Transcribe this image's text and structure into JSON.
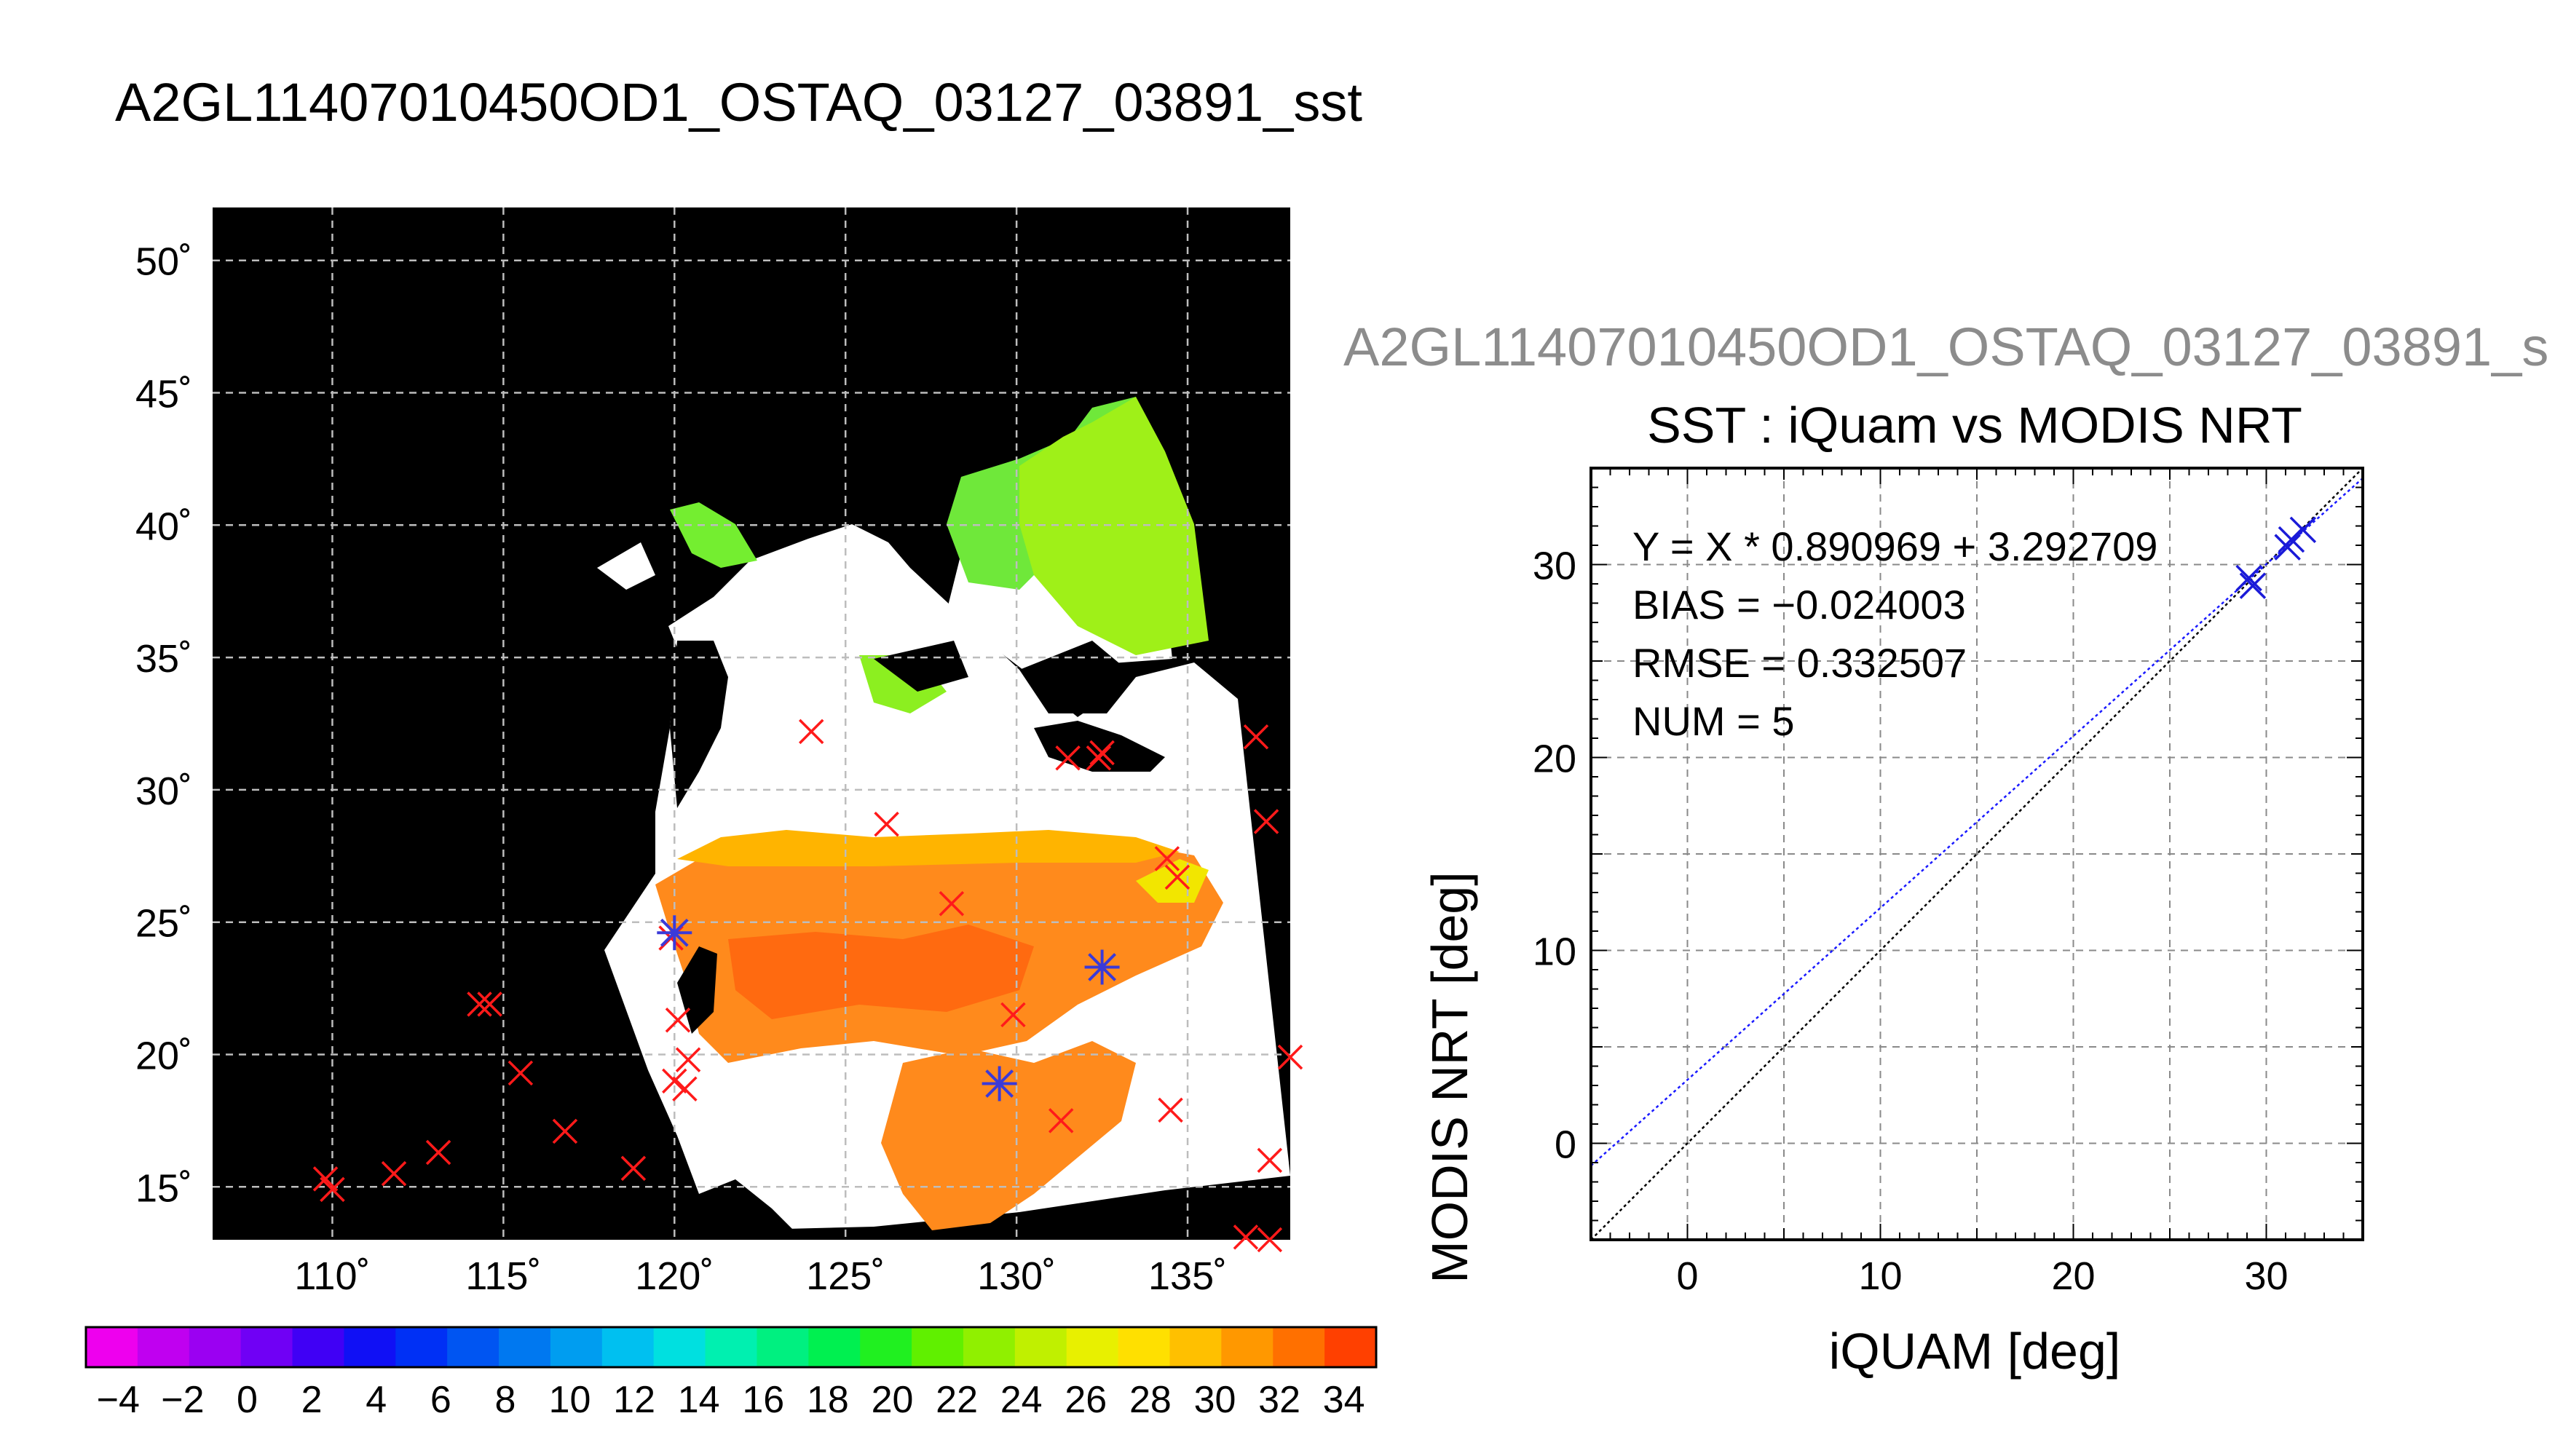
{
  "figure": {
    "main_title": "A2GL11407010450OD1_OSTAQ_03127_03891_sst",
    "right_title": "A2GL11407010450OD1_OSTAQ_03127_03891_s"
  },
  "chart_data": [
    {
      "type": "map",
      "xlim": [
        106.5,
        138
      ],
      "ylim": [
        13,
        52
      ],
      "lon_ticks": [
        110,
        115,
        120,
        125,
        130,
        135
      ],
      "lat_ticks": [
        15,
        20,
        25,
        30,
        35,
        40,
        45,
        50
      ],
      "lon_tick_labels": [
        "110˚",
        "115˚",
        "120˚",
        "125˚",
        "130˚",
        "135˚"
      ],
      "lat_tick_labels": [
        "15˚",
        "20˚",
        "25˚",
        "30˚",
        "35˚",
        "40˚",
        "45˚",
        "50˚"
      ],
      "grid": true,
      "colorbar": {
        "min": -5,
        "max": 35,
        "tick_labels": [
          "−4",
          "−2",
          "0",
          "2",
          "4",
          "6",
          "8",
          "10",
          "12",
          "14",
          "16",
          "18",
          "20",
          "22",
          "24",
          "26",
          "28",
          "30",
          "32",
          "34"
        ],
        "colors": [
          "#ee00ee",
          "#c000f0",
          "#9b00f2",
          "#7000f5",
          "#4000f5",
          "#1010f5",
          "#0030f5",
          "#0055f2",
          "#0078f0",
          "#009df0",
          "#00c0f0",
          "#00e0e0",
          "#00f0b0",
          "#00f080",
          "#00f050",
          "#20f020",
          "#60f000",
          "#90f000",
          "#c0f000",
          "#e8f000",
          "#ffe000",
          "#ffc000",
          "#ff9800",
          "#ff7000",
          "#ff4000"
        ]
      },
      "red_markers": [
        [
          124,
          32.2
        ],
        [
          131.5,
          31.2
        ],
        [
          132.5,
          31.4
        ],
        [
          132.4,
          31.2
        ],
        [
          137,
          32
        ],
        [
          137.3,
          28.8
        ],
        [
          126.2,
          28.7
        ],
        [
          134.4,
          27.4
        ],
        [
          134.7,
          26.7
        ],
        [
          128.1,
          25.7
        ],
        [
          119.9,
          24.4
        ],
        [
          114.3,
          21.9
        ],
        [
          114.6,
          21.9
        ],
        [
          115.5,
          19.3
        ],
        [
          120.1,
          21.3
        ],
        [
          120.4,
          19.8
        ],
        [
          120,
          19
        ],
        [
          120.3,
          18.7
        ],
        [
          129.9,
          21.5
        ],
        [
          138,
          19.9
        ],
        [
          131.3,
          17.5
        ],
        [
          134.5,
          17.9
        ],
        [
          116.8,
          17.1
        ],
        [
          113.1,
          16.3
        ],
        [
          111.8,
          15.5
        ],
        [
          109.8,
          15.3
        ],
        [
          110,
          14.9
        ],
        [
          118.8,
          15.7
        ],
        [
          137.4,
          16
        ],
        [
          136.7,
          13.1
        ],
        [
          137.4,
          13
        ]
      ],
      "blue_markers": [
        [
          120,
          24.6
        ],
        [
          132.5,
          23.3
        ],
        [
          129.5,
          18.9
        ]
      ]
    },
    {
      "type": "scatter",
      "title": "SST : iQuam vs MODIS NRT",
      "xlabel": "iQUAM [deg]",
      "ylabel": "MODIS NRT [deg]",
      "xlim": [
        -5,
        35
      ],
      "ylim": [
        -5,
        35
      ],
      "xticks": [
        0,
        10,
        20,
        30
      ],
      "yticks": [
        0,
        10,
        20,
        30
      ],
      "grid": true,
      "points": [
        [
          29.1,
          29.3
        ],
        [
          29.3,
          28.9
        ],
        [
          31.1,
          30.9
        ],
        [
          31.3,
          31.3
        ],
        [
          31.9,
          31.8
        ]
      ],
      "fit": {
        "slope": 0.890969,
        "intercept": 3.292709
      },
      "stats": {
        "equation": "Y = X * 0.890969 + 3.292709",
        "bias": "BIAS = −0.024003",
        "rmse": "RMSE = 0.332507",
        "num": "NUM = 5"
      }
    }
  ]
}
